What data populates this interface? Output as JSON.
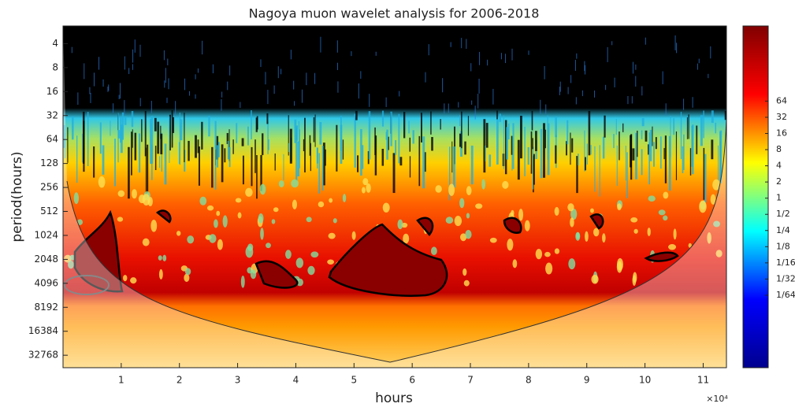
{
  "chart_data": {
    "type": "wavelet",
    "title": "Nagoya muon wavelet analysis for 2006-2018",
    "xlabel": "hours",
    "ylabel": "period(hours)",
    "x_multiplier": "×10⁴",
    "xlim": [
      0,
      11.4
    ],
    "xticks": [
      1,
      2,
      3,
      4,
      5,
      6,
      7,
      8,
      9,
      10,
      11
    ],
    "ylim": [
      2.4,
      47000
    ],
    "y_log2": true,
    "y_reversed": true,
    "yticks": [
      4,
      8,
      16,
      32,
      64,
      128,
      256,
      512,
      1024,
      2048,
      4096,
      8192,
      16384,
      32768
    ],
    "clim": [
      0.0007,
      1600
    ],
    "c_log2": true,
    "cticks": [
      64,
      32,
      16,
      8,
      4,
      2,
      1,
      {
        "value": 0.5,
        "label": "1/2"
      },
      {
        "value": 0.25,
        "label": "1/4"
      },
      {
        "value": 0.125,
        "label": "1/8"
      },
      {
        "value": 0.0625,
        "label": "1/16"
      },
      {
        "value": 0.03125,
        "label": "1/32"
      },
      {
        "value": 0.015625,
        "label": "1/64"
      }
    ],
    "colormap": [
      "#00008f",
      "#0000ff",
      "#00ffff",
      "#ffff00",
      "#ff0000",
      "#800000"
    ]
  }
}
